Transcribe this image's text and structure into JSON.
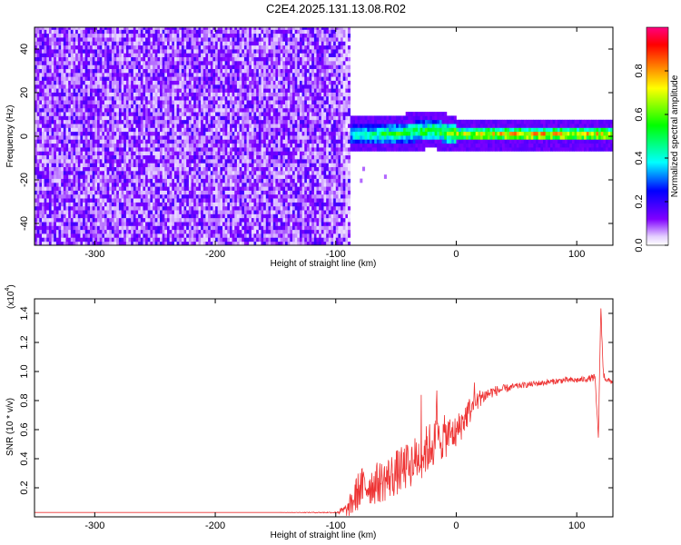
{
  "figure_title": "C2E4.2025.131.13.08.R02",
  "chart_data": [
    {
      "type": "heatmap",
      "xlabel": "Height of straight line (km)",
      "ylabel": "Frequency (Hz)",
      "xlim": [
        -350,
        130
      ],
      "ylim": [
        -50,
        50
      ],
      "xticks": [
        -300,
        -200,
        -100,
        0,
        100
      ],
      "xtick_labels": [
        "-300",
        "-200",
        "-100",
        "0",
        "100"
      ],
      "yticks": [
        -40,
        -20,
        0,
        20,
        40
      ],
      "ytick_labels": [
        "-40",
        "-20",
        "0",
        "20",
        "40"
      ],
      "colorbar": {
        "label": "Normalized spectral amplitude",
        "range": [
          0,
          1
        ],
        "ticks": [
          0,
          0.2,
          0.4,
          0.6,
          0.8
        ],
        "tick_labels": [
          "0.0",
          "0.2",
          "0.4",
          "0.6",
          "0.8"
        ],
        "colors": [
          "#ffffff",
          "#d8b4ff",
          "#8000ff",
          "#0000ff",
          "#00ffff",
          "#00ff00",
          "#ffff00",
          "#ff8000",
          "#ff0000",
          "#ff0080"
        ]
      },
      "regions": [
        {
          "x_range": [
            -350,
            -88
          ],
          "description_level": 0.12,
          "y_range": [
            -50,
            50
          ]
        },
        {
          "x_range": [
            -88,
            130
          ],
          "peak_frequency": 0,
          "bandwidth": 8
        }
      ],
      "ridge": [
        {
          "x": -85,
          "f": 0,
          "amp": 0.45
        },
        {
          "x": -60,
          "f": 0,
          "amp": 0.55
        },
        {
          "x": -40,
          "f": 1,
          "amp": 0.6
        },
        {
          "x": -20,
          "f": 2,
          "amp": 0.6
        },
        {
          "x": 0,
          "f": 0,
          "amp": 0.75
        },
        {
          "x": 40,
          "f": 0,
          "amp": 0.85
        },
        {
          "x": 80,
          "f": 0,
          "amp": 0.85
        },
        {
          "x": 120,
          "f": 0,
          "amp": 0.85
        }
      ]
    },
    {
      "type": "line",
      "xlabel": "Height of straight line (km)",
      "ylabel": "SNR (10 * v/v)",
      "scale_label": "(x10",
      "scale_exp": "4",
      "xlim": [
        -350,
        130
      ],
      "ylim": [
        0,
        1.5
      ],
      "xticks": [
        -300,
        -200,
        -100,
        0,
        100
      ],
      "xtick_labels": [
        "-300",
        "-200",
        "-100",
        "0",
        "100"
      ],
      "yticks": [
        0.2,
        0.4,
        0.6,
        0.8,
        1.0,
        1.2,
        1.4
      ],
      "ytick_labels": [
        "0.2",
        "0.4",
        "0.6",
        "0.8",
        "1.0",
        "1.2",
        "1.4"
      ],
      "color": "#ee3333",
      "series": [
        {
          "x": [
            -350,
            -300,
            -250,
            -200,
            -150,
            -100,
            -90,
            -85,
            -80,
            -70,
            -60,
            -50,
            -40,
            -30,
            -20,
            -10,
            0,
            10,
            20,
            30,
            40,
            50,
            60,
            70,
            80,
            90,
            100,
            110,
            115,
            118,
            120,
            122,
            125,
            130
          ],
          "y": [
            0.03,
            0.03,
            0.03,
            0.03,
            0.03,
            0.03,
            0.05,
            0.12,
            0.2,
            0.22,
            0.25,
            0.3,
            0.35,
            0.42,
            0.5,
            0.55,
            0.58,
            0.72,
            0.82,
            0.86,
            0.88,
            0.9,
            0.91,
            0.92,
            0.93,
            0.94,
            0.94,
            0.95,
            0.96,
            0.55,
            1.45,
            0.98,
            0.94,
            0.93
          ],
          "noise": [
            0,
            0,
            0,
            0,
            0,
            0.005,
            0.05,
            0.12,
            0.14,
            0.14,
            0.15,
            0.16,
            0.16,
            0.17,
            0.17,
            0.15,
            0.12,
            0.1,
            0.06,
            0.04,
            0.03,
            0.02,
            0.02,
            0.02,
            0.02,
            0.02,
            0.02,
            0.02,
            0.03,
            0.02,
            0.02,
            0.03,
            0.02,
            0.02
          ]
        }
      ]
    }
  ]
}
